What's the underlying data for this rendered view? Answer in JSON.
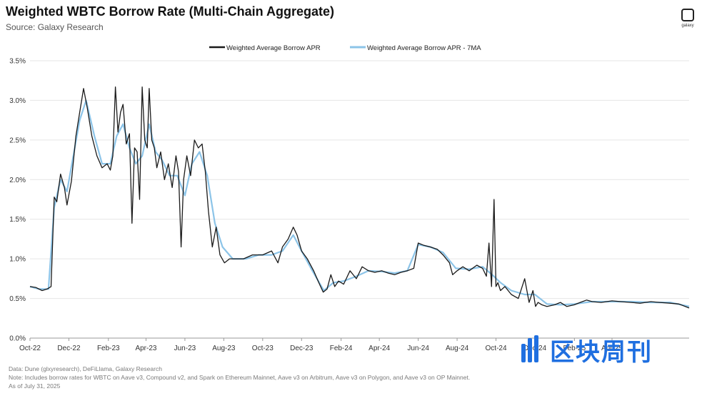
{
  "header": {
    "title": "Weighted WBTC Borrow Rate (Multi-Chain Aggregate)",
    "subtitle": "Source: Galaxy Research",
    "logo_text": "galaxy"
  },
  "footer": {
    "line1": "Data: Dune (glxyresearch), DeFiLlama, Galaxy Research",
    "line2": "Note: Includes borrow rates for WBTC on Aave v3, Compound v2, and Spark on Ethereum Mainnet, Aave v3 on Arbitrum, Aave v3 on Polygon, and Aave v3 on OP Mainnet.",
    "line3": "As of July 31, 2025"
  },
  "watermark": {
    "text": "区块周刊",
    "color": "#1f6fe0"
  },
  "colors": {
    "apr": "#1a1a1a",
    "ma": "#8cc4e8",
    "grid": "#e6e6e6",
    "axis": "#999999"
  },
  "chart_data": {
    "type": "line",
    "title": "Weighted WBTC Borrow Rate (Multi-Chain Aggregate)",
    "xlabel": "",
    "ylabel": "",
    "ylim": [
      0,
      3.5
    ],
    "y_ticks": [
      "0.0%",
      "0.5%",
      "1.0%",
      "1.5%",
      "2.0%",
      "2.5%",
      "3.0%",
      "3.5%"
    ],
    "x_ticks": [
      "Oct-22",
      "Dec-22",
      "Feb-23",
      "Apr-23",
      "Jun-23",
      "Aug-23",
      "Oct-23",
      "Dec-23",
      "Feb-24",
      "Apr-24",
      "Jun-24",
      "Aug-24",
      "Oct-24",
      "Dec-24",
      "Feb-25",
      "Apr-25"
    ],
    "x_range": [
      "2022-10-01",
      "2025-07-31"
    ],
    "grid": "horizontal",
    "legend": "top-center",
    "series": [
      {
        "name": "Weighted Average Borrow APR",
        "color": "#1a1a1a",
        "x": [
          "2022-10-01",
          "2022-10-10",
          "2022-10-20",
          "2022-10-28",
          "2022-11-03",
          "2022-11-08",
          "2022-11-12",
          "2022-11-18",
          "2022-11-24",
          "2022-11-28",
          "2022-12-05",
          "2022-12-12",
          "2022-12-18",
          "2022-12-24",
          "2022-12-30",
          "2023-01-06",
          "2023-01-14",
          "2023-01-22",
          "2023-01-30",
          "2023-02-04",
          "2023-02-08",
          "2023-02-12",
          "2023-02-16",
          "2023-02-20",
          "2023-02-24",
          "2023-03-01",
          "2023-03-06",
          "2023-03-10",
          "2023-03-14",
          "2023-03-18",
          "2023-03-22",
          "2023-03-26",
          "2023-03-30",
          "2023-04-03",
          "2023-04-06",
          "2023-04-10",
          "2023-04-14",
          "2023-04-18",
          "2023-04-24",
          "2023-04-30",
          "2023-05-06",
          "2023-05-12",
          "2023-05-18",
          "2023-05-22",
          "2023-05-26",
          "2023-05-30",
          "2023-06-04",
          "2023-06-10",
          "2023-06-16",
          "2023-06-22",
          "2023-06-28",
          "2023-07-03",
          "2023-07-08",
          "2023-07-14",
          "2023-07-20",
          "2023-07-26",
          "2023-08-02",
          "2023-08-10",
          "2023-08-20",
          "2023-09-01",
          "2023-09-15",
          "2023-10-01",
          "2023-10-15",
          "2023-10-25",
          "2023-11-01",
          "2023-11-10",
          "2023-11-18",
          "2023-11-24",
          "2023-12-01",
          "2023-12-10",
          "2023-12-20",
          "2023-12-28",
          "2024-01-04",
          "2024-01-10",
          "2024-01-16",
          "2024-01-22",
          "2024-01-28",
          "2024-02-05",
          "2024-02-15",
          "2024-02-25",
          "2024-03-05",
          "2024-03-15",
          "2024-03-25",
          "2024-04-05",
          "2024-04-15",
          "2024-04-25",
          "2024-05-05",
          "2024-05-15",
          "2024-05-25",
          "2024-06-01",
          "2024-06-10",
          "2024-06-20",
          "2024-07-01",
          "2024-07-10",
          "2024-07-20",
          "2024-07-25",
          "2024-08-01",
          "2024-08-10",
          "2024-08-20",
          "2024-09-01",
          "2024-09-10",
          "2024-09-16",
          "2024-09-20",
          "2024-09-24",
          "2024-09-28",
          "2024-10-01",
          "2024-10-04",
          "2024-10-08",
          "2024-10-15",
          "2024-10-25",
          "2024-11-05",
          "2024-11-15",
          "2024-11-22",
          "2024-11-28",
          "2024-12-02",
          "2024-12-06",
          "2024-12-12",
          "2024-12-20",
          "2025-01-01",
          "2025-01-10",
          "2025-01-20",
          "2025-02-01",
          "2025-02-10",
          "2025-02-20",
          "2025-03-01",
          "2025-03-15",
          "2025-04-01",
          "2025-04-15",
          "2025-05-01",
          "2025-05-15",
          "2025-06-01",
          "2025-06-15",
          "2025-07-01",
          "2025-07-15",
          "2025-07-31"
        ],
        "y": [
          0.65,
          0.64,
          0.6,
          0.62,
          0.65,
          1.78,
          1.72,
          2.07,
          1.9,
          1.68,
          1.98,
          2.55,
          2.85,
          3.15,
          2.9,
          2.55,
          2.3,
          2.15,
          2.2,
          2.12,
          2.3,
          3.17,
          2.6,
          2.85,
          2.95,
          2.45,
          2.58,
          1.45,
          2.4,
          2.35,
          1.75,
          3.17,
          2.5,
          2.4,
          3.15,
          2.5,
          2.4,
          2.15,
          2.35,
          2.0,
          2.2,
          1.9,
          2.3,
          2.1,
          1.15,
          2.0,
          2.3,
          2.05,
          2.5,
          2.4,
          2.45,
          2.1,
          1.6,
          1.15,
          1.4,
          1.05,
          0.95,
          1.0,
          1.0,
          1.0,
          1.05,
          1.05,
          1.1,
          0.95,
          1.15,
          1.25,
          1.4,
          1.3,
          1.1,
          1.0,
          0.85,
          0.7,
          0.58,
          0.62,
          0.8,
          0.65,
          0.72,
          0.68,
          0.85,
          0.75,
          0.9,
          0.85,
          0.83,
          0.85,
          0.82,
          0.8,
          0.83,
          0.85,
          0.88,
          1.2,
          1.17,
          1.15,
          1.12,
          1.05,
          0.95,
          0.8,
          0.85,
          0.9,
          0.85,
          0.92,
          0.88,
          0.78,
          1.2,
          0.65,
          1.75,
          0.65,
          0.7,
          0.6,
          0.65,
          0.55,
          0.5,
          0.75,
          0.45,
          0.6,
          0.4,
          0.45,
          0.42,
          0.4,
          0.42,
          0.45,
          0.4,
          0.42,
          0.45,
          0.48,
          0.46,
          0.45,
          0.47,
          0.46,
          0.45,
          0.44,
          0.46,
          0.45,
          0.44,
          0.43,
          0.38
        ]
      },
      {
        "name": "Weighted Average Borrow APR - 7MA",
        "color": "#8cc4e8",
        "x": [
          "2022-10-01",
          "2022-10-15",
          "2022-10-30",
          "2022-11-08",
          "2022-11-18",
          "2022-11-28",
          "2022-12-08",
          "2022-12-18",
          "2022-12-28",
          "2023-01-10",
          "2023-01-22",
          "2023-02-04",
          "2023-02-14",
          "2023-02-24",
          "2023-03-06",
          "2023-03-16",
          "2023-03-26",
          "2023-04-06",
          "2023-04-16",
          "2023-04-26",
          "2023-05-08",
          "2023-05-20",
          "2023-06-01",
          "2023-06-12",
          "2023-06-24",
          "2023-07-06",
          "2023-07-18",
          "2023-07-30",
          "2023-08-15",
          "2023-09-05",
          "2023-09-25",
          "2023-10-15",
          "2023-11-01",
          "2023-11-18",
          "2023-12-01",
          "2023-12-18",
          "2024-01-05",
          "2024-01-20",
          "2024-02-05",
          "2024-02-25",
          "2024-03-15",
          "2024-04-05",
          "2024-04-25",
          "2024-05-15",
          "2024-06-01",
          "2024-06-20",
          "2024-07-10",
          "2024-07-30",
          "2024-08-20",
          "2024-09-10",
          "2024-09-25",
          "2024-10-08",
          "2024-10-25",
          "2024-11-15",
          "2024-12-01",
          "2024-12-20",
          "2025-01-10",
          "2025-02-01",
          "2025-03-01",
          "2025-04-01",
          "2025-05-01",
          "2025-06-01",
          "2025-07-01",
          "2025-07-31"
        ],
        "y": [
          0.65,
          0.62,
          0.62,
          1.65,
          2.0,
          1.85,
          2.3,
          2.75,
          3.0,
          2.55,
          2.2,
          2.2,
          2.55,
          2.7,
          2.4,
          2.2,
          2.3,
          2.7,
          2.35,
          2.25,
          2.05,
          2.05,
          1.8,
          2.2,
          2.35,
          2.05,
          1.45,
          1.15,
          1.0,
          1.0,
          1.05,
          1.05,
          1.1,
          1.3,
          1.1,
          0.85,
          0.6,
          0.7,
          0.72,
          0.78,
          0.85,
          0.84,
          0.82,
          0.85,
          1.18,
          1.15,
          1.08,
          0.88,
          0.87,
          0.9,
          0.8,
          0.7,
          0.6,
          0.55,
          0.55,
          0.43,
          0.42,
          0.43,
          0.46,
          0.46,
          0.46,
          0.45,
          0.45,
          0.4
        ]
      }
    ]
  }
}
